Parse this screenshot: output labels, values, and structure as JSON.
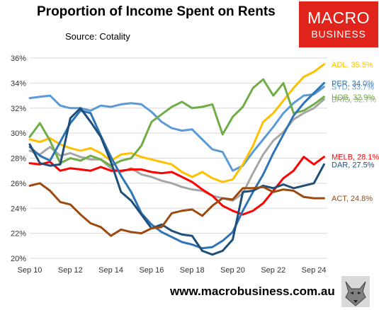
{
  "header": {
    "title": "Proportion of Income Spent on Rents",
    "source": "Source: Cotality"
  },
  "logo": {
    "line1": "MACRO",
    "line2": "BUSINESS",
    "color": "#e0241b"
  },
  "footer": {
    "website": "www.macrobusiness.com.au"
  },
  "chart_data": {
    "type": "line",
    "title": "Proportion of Income Spent on Rents",
    "xlabel": "",
    "ylabel": "",
    "x_range": [
      2010.67,
      2025.33
    ],
    "ylim": [
      20,
      36
    ],
    "xticks": [
      {
        "value": 2010.67,
        "label": "Sep 10"
      },
      {
        "value": 2012.67,
        "label": "Sep 12"
      },
      {
        "value": 2014.67,
        "label": "Sep 14"
      },
      {
        "value": 2016.67,
        "label": "Sep 16"
      },
      {
        "value": 2018.67,
        "label": "Sep 18"
      },
      {
        "value": 2020.67,
        "label": "Sep 20"
      },
      {
        "value": 2022.67,
        "label": "Sep 22"
      },
      {
        "value": 2024.67,
        "label": "Sep 24"
      }
    ],
    "yticks": [
      20,
      22,
      24,
      26,
      28,
      30,
      32,
      34,
      36
    ],
    "ytick_labels": [
      "20%",
      "22%",
      "24%",
      "26%",
      "28%",
      "30%",
      "32%",
      "34%",
      "36%"
    ],
    "grid": "horizontal",
    "legend": "end-of-line labels",
    "series": [
      {
        "label": "SYD, 33.7%",
        "color": "#5b9bd5",
        "x": [
          2010.67,
          2011.17,
          2011.67,
          2012.17,
          2012.67,
          2013.17,
          2013.67,
          2014.17,
          2014.67,
          2015.17,
          2015.67,
          2016.17,
          2016.67,
          2017.17,
          2017.67,
          2018.17,
          2018.67,
          2019.17,
          2019.67,
          2020.17,
          2020.67,
          2021.17,
          2021.67,
          2022.17,
          2022.67,
          2023.17,
          2023.67,
          2024.17,
          2024.67,
          2025.17
        ],
        "y": [
          32.8,
          32.9,
          33.0,
          32.2,
          32.0,
          32.0,
          31.8,
          32.2,
          32.1,
          32.3,
          32.4,
          32.3,
          31.7,
          30.9,
          30.4,
          30.2,
          30.3,
          29.5,
          28.7,
          28.5,
          27.0,
          27.4,
          28.5,
          29.5,
          30.5,
          31.6,
          32.4,
          33.0,
          33.1,
          33.7
        ]
      },
      {
        "label": "BRIS, 32.7%",
        "color": "#a6a6a6",
        "x": [
          2010.67,
          2011.17,
          2011.67,
          2012.17,
          2012.67,
          2013.17,
          2013.67,
          2014.17,
          2014.67,
          2015.17,
          2015.67,
          2016.17,
          2016.67,
          2017.17,
          2017.67,
          2018.17,
          2018.67,
          2019.17,
          2019.67,
          2020.17,
          2020.67,
          2021.17,
          2021.67,
          2022.17,
          2022.67,
          2023.17,
          2023.67,
          2024.17,
          2024.67,
          2025.17
        ],
        "y": [
          28.6,
          28.3,
          28.9,
          28.2,
          28.4,
          28.1,
          27.9,
          27.9,
          27.2,
          26.9,
          27.2,
          26.7,
          26.5,
          26.2,
          26.0,
          25.7,
          25.5,
          25.4,
          25.0,
          24.8,
          24.6,
          25.2,
          26.8,
          28.3,
          29.4,
          30.1,
          31.1,
          31.6,
          32.0,
          32.7
        ]
      },
      {
        "label": "ADL, 35.5%",
        "color": "#ffc000",
        "x": [
          2010.67,
          2011.17,
          2011.67,
          2012.17,
          2012.67,
          2013.17,
          2013.67,
          2014.17,
          2014.67,
          2015.17,
          2015.67,
          2016.17,
          2016.67,
          2017.17,
          2017.67,
          2018.17,
          2018.67,
          2019.17,
          2019.67,
          2020.17,
          2020.67,
          2021.17,
          2021.67,
          2022.17,
          2022.67,
          2023.17,
          2023.67,
          2024.17,
          2024.67,
          2025.17
        ],
        "y": [
          29.5,
          29.3,
          29.6,
          29.1,
          28.8,
          28.6,
          28.8,
          28.4,
          27.8,
          28.3,
          28.4,
          28.1,
          27.9,
          27.7,
          27.5,
          26.9,
          26.5,
          26.9,
          26.4,
          26.1,
          26.3,
          27.5,
          29.0,
          30.9,
          31.6,
          32.6,
          33.6,
          34.5,
          34.9,
          35.5
        ]
      },
      {
        "label": "HOB, 32.9%",
        "color": "#70ad47",
        "x": [
          2010.67,
          2011.17,
          2011.67,
          2012.17,
          2012.67,
          2013.17,
          2013.67,
          2014.17,
          2014.67,
          2015.17,
          2015.67,
          2016.17,
          2016.67,
          2017.17,
          2017.67,
          2018.17,
          2018.67,
          2019.17,
          2019.67,
          2020.17,
          2020.67,
          2021.17,
          2021.67,
          2022.17,
          2022.67,
          2023.17,
          2023.67,
          2024.17,
          2024.67,
          2025.17
        ],
        "y": [
          29.7,
          30.8,
          29.4,
          27.6,
          28.0,
          27.8,
          28.2,
          27.9,
          27.4,
          27.8,
          28.0,
          29.0,
          30.9,
          31.5,
          32.1,
          32.5,
          32.0,
          32.1,
          32.3,
          29.9,
          31.3,
          32.1,
          33.6,
          34.3,
          33.0,
          34.0,
          31.6,
          31.8,
          32.3,
          32.9
        ]
      },
      {
        "label": "MELB, 28.1%",
        "color": "#ff0000",
        "x": [
          2010.67,
          2011.17,
          2011.67,
          2012.17,
          2012.67,
          2013.17,
          2013.67,
          2014.17,
          2014.67,
          2015.17,
          2015.67,
          2016.17,
          2016.67,
          2017.17,
          2017.67,
          2018.17,
          2018.67,
          2019.17,
          2019.67,
          2020.17,
          2020.67,
          2021.17,
          2021.67,
          2022.17,
          2022.67,
          2023.17,
          2023.67,
          2024.17,
          2024.67,
          2025.17
        ],
        "y": [
          27.6,
          27.5,
          27.7,
          27.0,
          27.2,
          27.1,
          27.0,
          27.3,
          27.0,
          27.0,
          27.1,
          27.1,
          26.9,
          26.8,
          26.9,
          26.5,
          26.1,
          25.5,
          25.0,
          24.2,
          23.8,
          23.5,
          23.8,
          24.4,
          25.4,
          26.4,
          27.0,
          28.1,
          27.5,
          28.1
        ]
      },
      {
        "label": "PER, 34.0%",
        "color": "#2e75b6",
        "x": [
          2010.67,
          2011.17,
          2011.67,
          2012.17,
          2012.67,
          2013.17,
          2013.67,
          2014.17,
          2014.67,
          2015.17,
          2015.67,
          2016.17,
          2016.67,
          2017.17,
          2017.67,
          2018.17,
          2018.67,
          2019.17,
          2019.67,
          2020.17,
          2020.67,
          2021.17,
          2021.67,
          2022.17,
          2022.67,
          2023.17,
          2023.67,
          2024.17,
          2024.67,
          2025.17
        ],
        "y": [
          28.9,
          28.2,
          27.8,
          29.3,
          30.8,
          31.8,
          31.6,
          29.8,
          28.1,
          26.6,
          25.3,
          23.6,
          22.7,
          22.1,
          21.7,
          21.3,
          21.1,
          20.8,
          20.9,
          21.4,
          22.1,
          23.8,
          25.3,
          26.7,
          28.4,
          29.9,
          31.4,
          32.4,
          33.2,
          34.0
        ]
      },
      {
        "label": "DAR, 27.5%",
        "color": "#1f4e79",
        "x": [
          2010.67,
          2011.17,
          2011.67,
          2012.17,
          2012.67,
          2013.17,
          2013.67,
          2014.17,
          2014.67,
          2015.17,
          2015.67,
          2016.17,
          2016.67,
          2017.17,
          2017.67,
          2018.17,
          2018.67,
          2019.17,
          2019.67,
          2020.17,
          2020.67,
          2021.17,
          2021.67,
          2022.17,
          2022.67,
          2023.17,
          2023.67,
          2024.17,
          2024.67,
          2025.17
        ],
        "y": [
          29.1,
          27.6,
          27.4,
          27.5,
          31.2,
          32.0,
          30.9,
          29.7,
          27.7,
          25.3,
          24.6,
          23.5,
          22.4,
          22.7,
          22.2,
          21.9,
          21.8,
          20.6,
          20.3,
          20.6,
          21.5,
          25.3,
          25.4,
          25.8,
          25.6,
          25.9,
          25.6,
          25.8,
          26.0,
          27.5
        ]
      },
      {
        "label": "ACT, 24.8%",
        "color": "#9c4a0f",
        "x": [
          2010.67,
          2011.17,
          2011.67,
          2012.17,
          2012.67,
          2013.17,
          2013.67,
          2014.17,
          2014.67,
          2015.17,
          2015.67,
          2016.17,
          2016.67,
          2017.17,
          2017.67,
          2018.17,
          2018.67,
          2019.17,
          2019.67,
          2020.17,
          2020.67,
          2021.17,
          2021.67,
          2022.17,
          2022.67,
          2023.17,
          2023.67,
          2024.17,
          2024.67,
          2025.17
        ],
        "y": [
          25.8,
          26.0,
          25.4,
          24.5,
          24.3,
          23.5,
          22.8,
          22.5,
          21.8,
          22.3,
          22.1,
          22.0,
          22.4,
          22.5,
          23.6,
          23.8,
          23.9,
          23.4,
          24.2,
          24.8,
          24.7,
          25.6,
          25.6,
          25.7,
          25.3,
          25.5,
          25.4,
          24.9,
          24.8,
          24.8
        ]
      }
    ],
    "label_positions": {
      "ADL, 35.5%": 35.5,
      "PER, 34.0%": 34.0,
      "SYD, 33.7%": 33.7,
      "HOB, 32.9%": 32.9,
      "BRIS, 32.7%": 32.7,
      "MELB, 28.1%": 28.1,
      "DAR, 27.5%": 27.5,
      "ACT, 24.8%": 24.8
    }
  }
}
